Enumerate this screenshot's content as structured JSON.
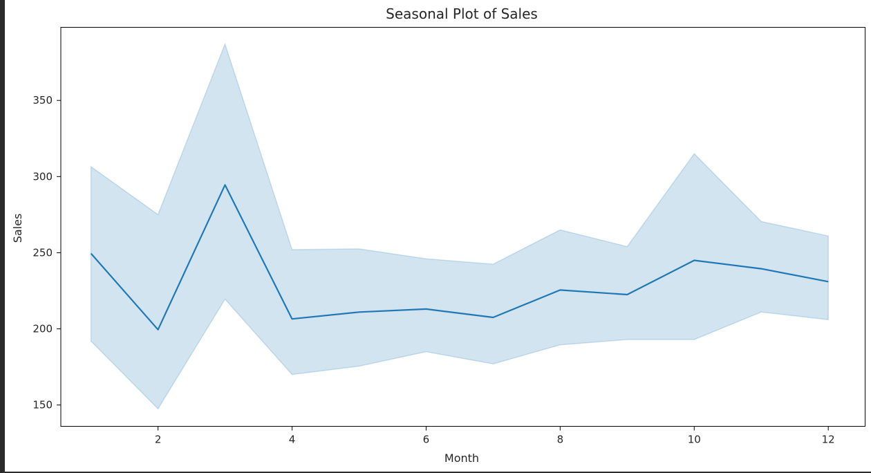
{
  "chart_data": {
    "type": "line",
    "title": "Seasonal Plot of Sales",
    "xlabel": "Month",
    "ylabel": "Sales",
    "xlim": [
      0.55,
      12.55
    ],
    "ylim": [
      136,
      398
    ],
    "xticks": [
      2,
      4,
      6,
      8,
      10,
      12
    ],
    "yticks": [
      150,
      200,
      250,
      300,
      350
    ],
    "grid": false,
    "series": [
      {
        "x": [
          1,
          2,
          3,
          4,
          5,
          6,
          7,
          8,
          9,
          10,
          11,
          12
        ],
        "values": [
          249.5,
          199.5,
          294.5,
          206.5,
          211,
          213,
          207.5,
          225.5,
          222.5,
          245,
          239.5,
          231
        ],
        "ci_upper": [
          306.5,
          275,
          387,
          252,
          252.5,
          246,
          242.5,
          265,
          254,
          315,
          270.5,
          261
        ],
        "ci_lower": [
          192,
          147.5,
          219.5,
          170,
          175.5,
          185,
          177,
          189.5,
          193,
          193,
          211,
          206
        ],
        "color": "#1f77b4",
        "band_color": "#1f77b4"
      }
    ]
  }
}
